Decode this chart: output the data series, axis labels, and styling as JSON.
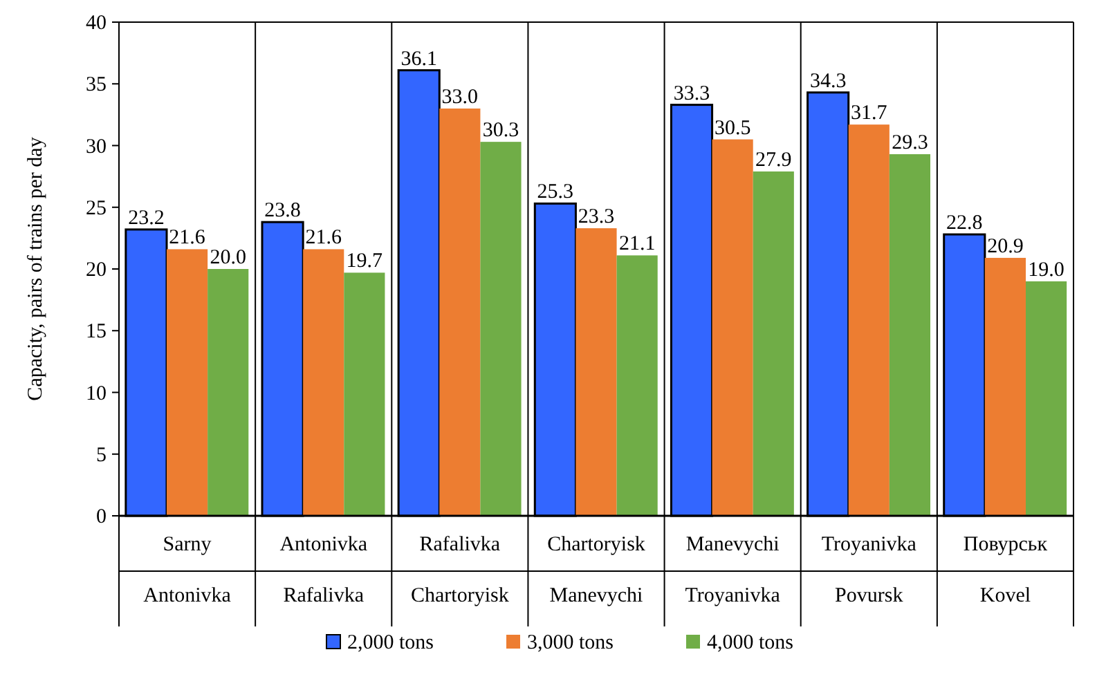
{
  "chart_data": {
    "type": "bar",
    "ylabel": "Capacity, pairs of trains per day",
    "categories": [
      "Sarny\nAntonivka",
      "Antonivka\nRafalivka",
      "Rafalivka\nChartoryisk",
      "Chartoryisk\nManevychi",
      "Manevychi\nTroyanivka",
      "Troyanivka\nPovursk",
      "Повурськ\nKovel"
    ],
    "series": [
      {
        "name": "2,000 tons",
        "color": "#3366ff",
        "values": [
          23.2,
          23.8,
          36.1,
          25.3,
          33.3,
          34.3,
          22.8
        ],
        "value_labels": [
          "23.2",
          "23.8",
          "36.1",
          "25.3",
          "33.3",
          "34.3",
          "22.8"
        ]
      },
      {
        "name": "3,000 tons",
        "color": "#ed7d31",
        "values": [
          21.6,
          21.6,
          33.0,
          23.3,
          30.5,
          31.7,
          20.9
        ],
        "value_labels": [
          "21.6",
          "21.6",
          "33.0",
          "23.3",
          "30.5",
          "31.7",
          "20.9"
        ]
      },
      {
        "name": "4,000 tons",
        "color": "#70ad47",
        "values": [
          20.0,
          19.7,
          30.3,
          21.1,
          27.9,
          29.3,
          19.0
        ],
        "value_labels": [
          "20.0",
          "19.7",
          "30.3",
          "21.1",
          "27.9",
          "29.3",
          "19.0"
        ]
      }
    ],
    "ylim": [
      0,
      40
    ],
    "yticks": [
      0,
      5,
      10,
      15,
      20,
      25,
      30,
      35,
      40
    ],
    "grid": false,
    "legend": "bottom"
  }
}
